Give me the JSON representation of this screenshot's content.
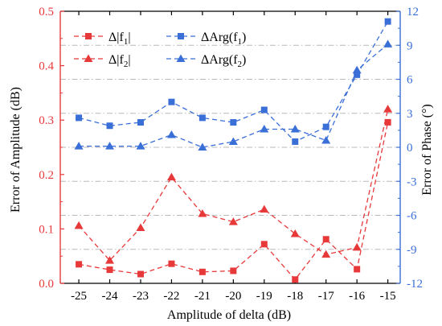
{
  "colors": {
    "left_axis": "#e8393a",
    "right_axis": "#3a6fd8",
    "axis_black": "#000000",
    "grid": "#b9b9b9"
  },
  "chart_data": {
    "type": "line",
    "x": [
      -25,
      -24,
      -23,
      -22,
      -21,
      -20,
      -19,
      -18,
      -17,
      -16,
      -15
    ],
    "xlabel": "Amplitude of delta (dB)",
    "xlim": [
      -25.6,
      -14.6
    ],
    "y_left": {
      "label": "Error of Amplitude (dB)",
      "ylim": [
        0,
        0.5
      ],
      "ticks": [
        "0.0",
        "0.1",
        "0.2",
        "0.3",
        "0.4",
        "0.5"
      ],
      "tick_values": [
        0,
        0.1,
        0.2,
        0.3,
        0.4,
        0.5
      ]
    },
    "y_right": {
      "label": "Error of Phase (°)",
      "ylim": [
        -12,
        12
      ],
      "ticks": [
        "-12",
        "-9",
        "-6",
        "-3",
        "0",
        "3",
        "6",
        "9",
        "12"
      ],
      "tick_values": [
        -12,
        -9,
        -6,
        -3,
        0,
        3,
        6,
        9,
        12
      ]
    },
    "x_ticks": [
      "-25",
      "-24",
      "-23",
      "-22",
      "-21",
      "-20",
      "-19",
      "-18",
      "-17",
      "-16",
      "-15"
    ],
    "grid": "horizontal dash-dot",
    "legend_position": "top-left",
    "series": [
      {
        "name": "Δ|f1|",
        "axis": "left",
        "marker": "square",
        "color": "#e8393a",
        "values": [
          0.035,
          0.025,
          0.017,
          0.036,
          0.021,
          0.023,
          0.072,
          0.007,
          0.081,
          0.026,
          0.296
        ]
      },
      {
        "name": "Δ|f2|",
        "axis": "left",
        "marker": "triangle",
        "color": "#e8393a",
        "values": [
          0.106,
          0.042,
          0.102,
          0.195,
          0.128,
          0.113,
          0.136,
          0.091,
          0.053,
          0.066,
          0.32
        ]
      },
      {
        "name": "ΔArg(f1)",
        "axis": "right",
        "marker": "square",
        "color": "#3a6fd8",
        "values": [
          2.6,
          1.9,
          2.2,
          4.0,
          2.6,
          2.2,
          3.3,
          0.5,
          1.8,
          6.4,
          11.1
        ]
      },
      {
        "name": "ΔArg(f2)",
        "axis": "right",
        "marker": "triangle",
        "color": "#3a6fd8",
        "values": [
          0.1,
          0.1,
          0.1,
          1.1,
          0.0,
          0.5,
          1.6,
          1.6,
          0.6,
          6.8,
          9.1
        ]
      }
    ],
    "legend": [
      {
        "base": "Δ|f",
        "sub": "1",
        "tail": "|"
      },
      {
        "base": "ΔArg(f",
        "sub": "1",
        "tail": ")"
      },
      {
        "base": "Δ|f",
        "sub": "2",
        "tail": "|"
      },
      {
        "base": "ΔArg(f",
        "sub": "2",
        "tail": ")"
      }
    ]
  }
}
